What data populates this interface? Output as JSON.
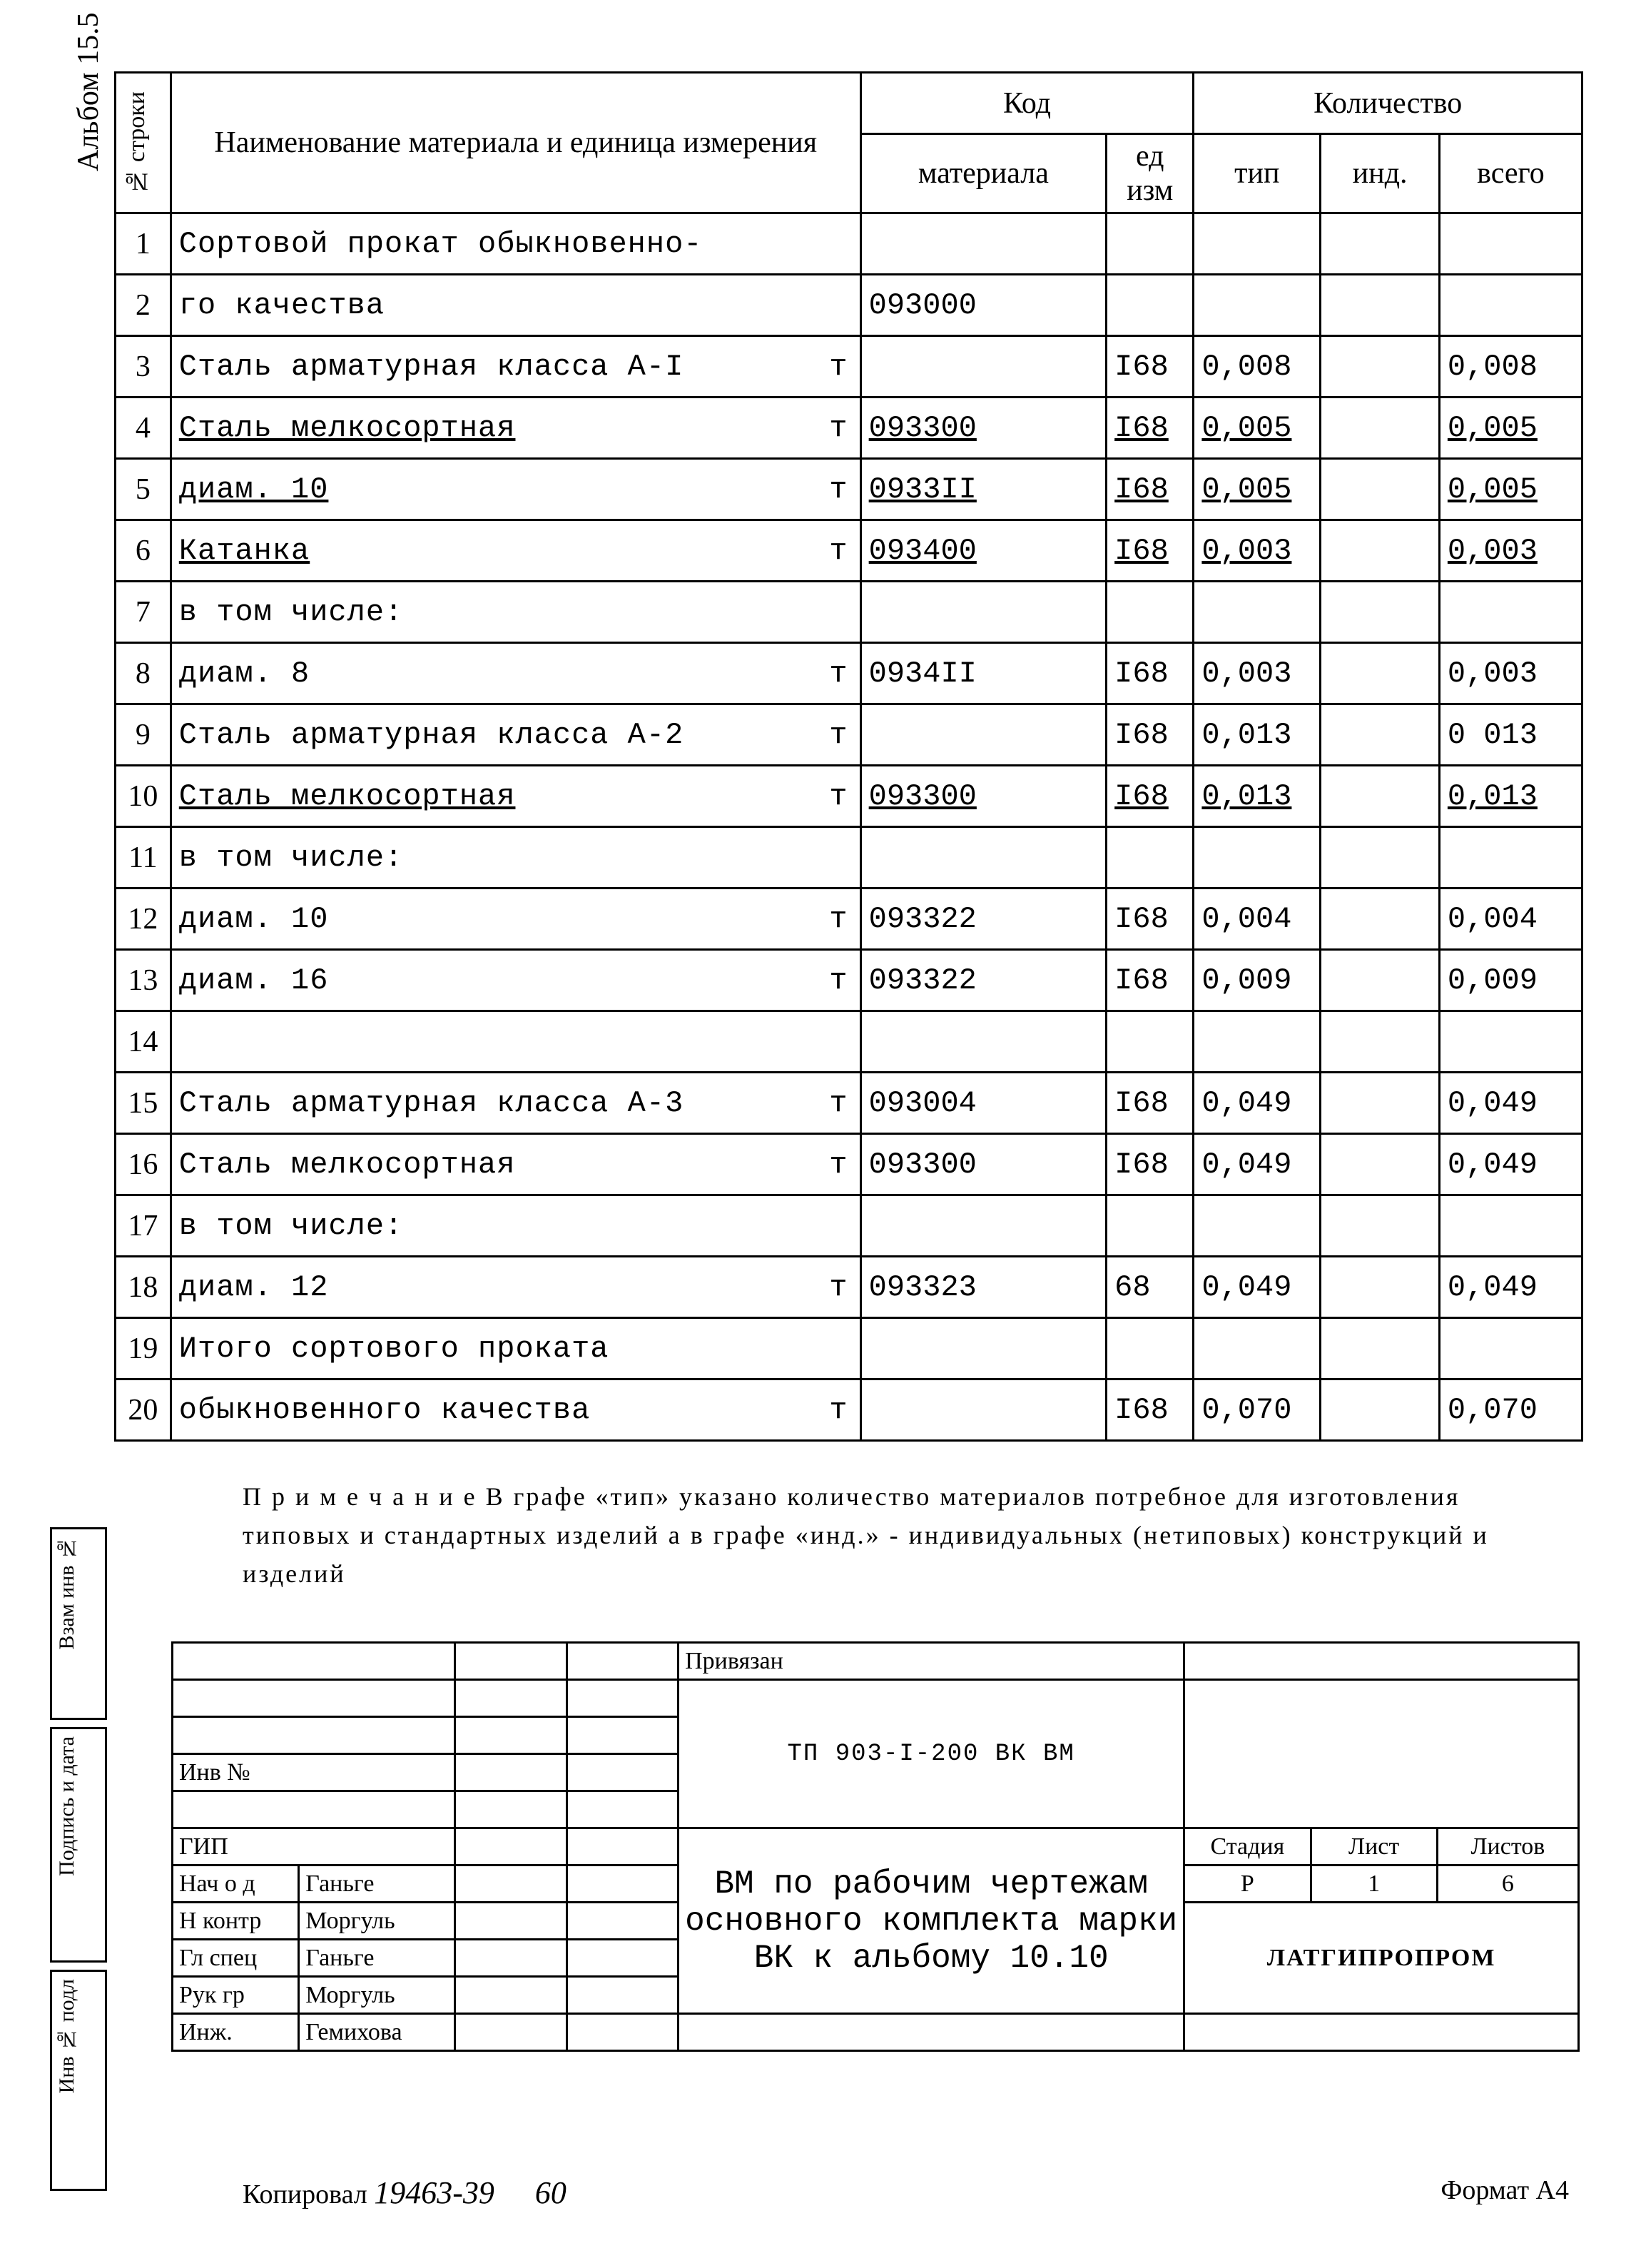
{
  "album_label": "Альбом 15.5",
  "headers": {
    "rownum": "№ строки",
    "name": "Наименование материала и единица измерения",
    "code_group": "Код",
    "material": "материала",
    "ed_izm": "ед изм",
    "qty_group": "Количество",
    "tip": "тип",
    "ind": "инд.",
    "total": "всего"
  },
  "rows": [
    {
      "n": "1",
      "name": "Сортовой прокат обыкновенно-",
      "unit": "",
      "mat": "",
      "ed": "",
      "tip": "",
      "ind": "",
      "tot": "",
      "u": false
    },
    {
      "n": "2",
      "name": "го качества",
      "unit": "",
      "mat": "093000",
      "ed": "",
      "tip": "",
      "ind": "",
      "tot": "",
      "u": false
    },
    {
      "n": "3",
      "name": "Сталь арматурная класса А-I",
      "unit": "т",
      "mat": "",
      "ed": "I68",
      "tip": "0,008",
      "ind": "",
      "tot": "0,008",
      "u": false
    },
    {
      "n": "4",
      "name": "Сталь мелкосортная",
      "unit": "т",
      "mat": "093300",
      "ed": "I68",
      "tip": "0,005",
      "ind": "",
      "tot": "0,005",
      "u": true
    },
    {
      "n": "5",
      "name": "диам. 10",
      "unit": "т",
      "mat": "0933II",
      "ed": "I68",
      "tip": "0,005",
      "ind": "",
      "tot": "0,005",
      "u": true
    },
    {
      "n": "6",
      "name": "Катанка",
      "unit": "т",
      "mat": "093400",
      "ed": "I68",
      "tip": "0,003",
      "ind": "",
      "tot": "0,003",
      "u": true
    },
    {
      "n": "7",
      "name": "в том числе:",
      "unit": "",
      "mat": "",
      "ed": "",
      "tip": "",
      "ind": "",
      "tot": "",
      "u": false
    },
    {
      "n": "8",
      "name": "диам. 8",
      "unit": "т",
      "mat": "0934II",
      "ed": "I68",
      "tip": "0,003",
      "ind": "",
      "tot": "0,003",
      "u": false
    },
    {
      "n": "9",
      "name": "Сталь арматурная класса А-2",
      "unit": "т",
      "mat": "",
      "ed": "I68",
      "tip": "0,013",
      "ind": "",
      "tot": "0 013",
      "u": false
    },
    {
      "n": "10",
      "name": "Сталь мелкосортная",
      "unit": "т",
      "mat": "093300",
      "ed": "I68",
      "tip": "0,013",
      "ind": "",
      "tot": "0,013",
      "u": true
    },
    {
      "n": "11",
      "name": "в том числе:",
      "unit": "",
      "mat": "",
      "ed": "",
      "tip": "",
      "ind": "",
      "tot": "",
      "u": false
    },
    {
      "n": "12",
      "name": "диам. 10",
      "unit": "т",
      "mat": "093322",
      "ed": "I68",
      "tip": "0,004",
      "ind": "",
      "tot": "0,004",
      "u": false
    },
    {
      "n": "13",
      "name": "диам. 16",
      "unit": "т",
      "mat": "093322",
      "ed": "I68",
      "tip": "0,009",
      "ind": "",
      "tot": "0,009",
      "u": false
    },
    {
      "n": "14",
      "name": "",
      "unit": "",
      "mat": "",
      "ed": "",
      "tip": "",
      "ind": "",
      "tot": "",
      "u": false
    },
    {
      "n": "15",
      "name": "Сталь арматурная класса А-3",
      "unit": "т",
      "mat": "093004",
      "ed": "I68",
      "tip": "0,049",
      "ind": "",
      "tot": "0,049",
      "u": false
    },
    {
      "n": "16",
      "name": "Сталь мелкосортная",
      "unit": "т",
      "mat": "093300",
      "ed": "I68",
      "tip": "0,049",
      "ind": "",
      "tot": "0,049",
      "u": false
    },
    {
      "n": "17",
      "name": "в том числе:",
      "unit": "",
      "mat": "",
      "ed": "",
      "tip": "",
      "ind": "",
      "tot": "",
      "u": false
    },
    {
      "n": "18",
      "name": "диам. 12",
      "unit": "т",
      "mat": "093323",
      "ed": "68",
      "tip": "0,049",
      "ind": "",
      "tot": "0,049",
      "u": false
    },
    {
      "n": "19",
      "name": "Итого сортового проката",
      "unit": "",
      "mat": "",
      "ed": "",
      "tip": "",
      "ind": "",
      "tot": "",
      "u": false
    },
    {
      "n": "20",
      "name": "обыкновенного качества",
      "unit": "т",
      "mat": "",
      "ed": "I68",
      "tip": "0,070",
      "ind": "",
      "tot": "0,070",
      "u": false
    }
  ],
  "note": "П р и м е ч а н и е  В графе «тип» указано количество материалов потребное для изготовления типовых и стандартных изделий а в графе «инд.» - индивидуальных (нетиповых) конструкций и изделий",
  "sidebar": {
    "vzam": "Взам инв №",
    "podp": "Подпись и дата",
    "inv": "Инв № подл"
  },
  "stamp": {
    "priv": "Привязан",
    "inv_n": "Инв №",
    "gip": "ГИП",
    "doc_code": "ТП 903-I-200  ВК ВМ",
    "roles": {
      "nach_otd": "Нач о д",
      "n_kontr": "Н контр",
      "gl_spec": "Гл спец",
      "ruk_gr": "Рук гр",
      "inzh": "Инж."
    },
    "names": {
      "nach_otd": "Ганьге",
      "n_kontr": "Моргуль",
      "gl_spec": "Ганьге",
      "ruk_gr": "Моргуль",
      "inzh": "Гемихова"
    },
    "title": "ВМ по рабочим чертежам основного комплекта марки ВК к альбому 10.10",
    "stage_h": "Стадия",
    "sheet_h": "Лист",
    "sheets_h": "Листов",
    "stage": "Р",
    "sheet": "1",
    "sheets": "6",
    "org": "ЛАТГИПРОПРОМ"
  },
  "footer": {
    "kopiroval": "Копировал",
    "kop_num": "19463-39",
    "page": "60",
    "format": "Формат А4"
  }
}
